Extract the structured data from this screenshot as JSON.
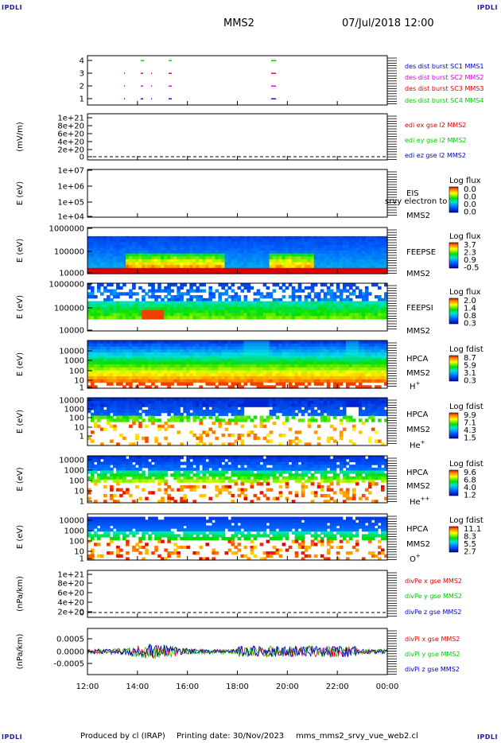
{
  "corners": {
    "tl": "IPDLI",
    "tr": "IPDLI",
    "bl": "IPDLI",
    "br": "IPDLI"
  },
  "header": {
    "title": "MMS2",
    "datetime": "07/Jul/2018 12:00"
  },
  "footer": {
    "produced": "Produced by cl (IRAP)",
    "printed": "Printing date: 30/Nov/2023",
    "file": "mms_mms2_srvy_vue_web2.cl"
  },
  "colors": {
    "red": "#e00000",
    "magenta": "#e000e0",
    "green": "#00cc00",
    "blue": "#0000cc",
    "bg_dark": "#0018b0"
  },
  "chart_data": [
    {
      "type": "scatter",
      "panel": "burst",
      "yticks": [
        "4",
        "3",
        "2",
        "1"
      ],
      "legend": [
        {
          "text": "des dist burst SC1 MMS1",
          "color": "#0000cc"
        },
        {
          "text": "des dist burst SC2 MMS2",
          "color": "#e000e0"
        },
        {
          "text": "des dist burst SC3 MMS3",
          "color": "#e00000"
        },
        {
          "text": "des dist burst SC4 MMS4",
          "color": "#00cc00"
        }
      ]
    },
    {
      "type": "line",
      "panel": "edi",
      "ylabel": "(mV/m)",
      "yticks": [
        "1e+21",
        "8e+20",
        "6e+20",
        "4e+20",
        "2e+20",
        "0"
      ],
      "legend": [
        {
          "text": "edi ex gse l2 MMS2",
          "color": "#e00000"
        },
        {
          "text": "edi ey gse l2 MMS2",
          "color": "#00cc00"
        },
        {
          "text": "edi ez gse l2 MMS2",
          "color": "#0000cc"
        }
      ]
    },
    {
      "type": "heatmap",
      "panel": "eis",
      "ylabel": "E (eV)",
      "yticks": [
        "1e+07",
        "1e+06",
        "1e+05",
        "1e+04"
      ],
      "inst": [
        "EIS",
        "MMS2"
      ],
      "overlay": "srvy electron to",
      "cb_title": "Log flux",
      "cb_values": [
        "0.0",
        "0.0",
        "0.0",
        "0.0"
      ]
    },
    {
      "type": "heatmap",
      "panel": "feepse",
      "ylabel": "E (eV)",
      "yticks": [
        "1000000",
        "100000",
        "10000"
      ],
      "inst": [
        "FEEPSE",
        "MMS2"
      ],
      "cb_title": "Log flux",
      "cb_values": [
        "3.7",
        "2.3",
        "0.9",
        "-0.5"
      ]
    },
    {
      "type": "heatmap",
      "panel": "feepsi",
      "ylabel": "E (eV)",
      "yticks": [
        "1000000",
        "100000",
        "10000"
      ],
      "inst": [
        "FEEPSI",
        "MMS2"
      ],
      "cb_title": "Log flux",
      "cb_values": [
        "2.0",
        "1.4",
        "0.8",
        "0.3"
      ]
    },
    {
      "type": "heatmap",
      "panel": "hpca_h",
      "ylabel": "E (eV)",
      "yticks": [
        "10000",
        "1000",
        "100",
        "10",
        "1"
      ],
      "inst": [
        "HPCA",
        "MMS2",
        "H+"
      ],
      "cb_title": "Log fdist",
      "cb_values": [
        "8.7",
        "5.9",
        "3.1",
        "0.3"
      ]
    },
    {
      "type": "heatmap",
      "panel": "hpca_he",
      "ylabel": "E (eV)",
      "yticks": [
        "10000",
        "1000",
        "100",
        "10",
        "1"
      ],
      "inst": [
        "HPCA",
        "MMS2",
        "He+"
      ],
      "cb_title": "Log fdist",
      "cb_values": [
        "9.9",
        "7.1",
        "4.3",
        "1.5"
      ]
    },
    {
      "type": "heatmap",
      "panel": "hpca_hepp",
      "ylabel": "E (eV)",
      "yticks": [
        "10000",
        "1000",
        "100",
        "10",
        "1"
      ],
      "inst": [
        "HPCA",
        "MMS2",
        "He++"
      ],
      "cb_title": "Log fdist",
      "cb_values": [
        "9.6",
        "6.8",
        "4.0",
        "1.2"
      ]
    },
    {
      "type": "heatmap",
      "panel": "hpca_o",
      "ylabel": "E (eV)",
      "yticks": [
        "10000",
        "1000",
        "100",
        "10",
        "1"
      ],
      "inst": [
        "HPCA",
        "MMS2",
        "O+"
      ],
      "cb_title": "Log fdist",
      "cb_values": [
        "11.1",
        "8.3",
        "5.5",
        "2.7"
      ]
    },
    {
      "type": "line",
      "panel": "divpe",
      "ylabel": "(nPa/km)",
      "yticks": [
        "1e+21",
        "8e+20",
        "6e+20",
        "4e+20",
        "2e+20",
        "0"
      ],
      "legend": [
        {
          "text": "divPe x gse MMS2",
          "color": "#e00000"
        },
        {
          "text": "divPe y gse MMS2",
          "color": "#00cc00"
        },
        {
          "text": "divPe z gse MMS2",
          "color": "#0000cc"
        }
      ]
    },
    {
      "type": "line",
      "panel": "divpi",
      "ylabel": "(nPa/km)",
      "yticks": [
        "0.0005",
        "0.0000",
        "-0.0005"
      ],
      "legend": [
        {
          "text": "divPi x gse MMS2",
          "color": "#e00000"
        },
        {
          "text": "divPi y gse MMS2",
          "color": "#00cc00"
        },
        {
          "text": "divPi z gse MMS2",
          "color": "#0000cc"
        }
      ]
    }
  ],
  "xaxis": {
    "ticks": [
      "12:00",
      "14:00",
      "16:00",
      "18:00",
      "20:00",
      "22:00",
      "00:00"
    ]
  }
}
